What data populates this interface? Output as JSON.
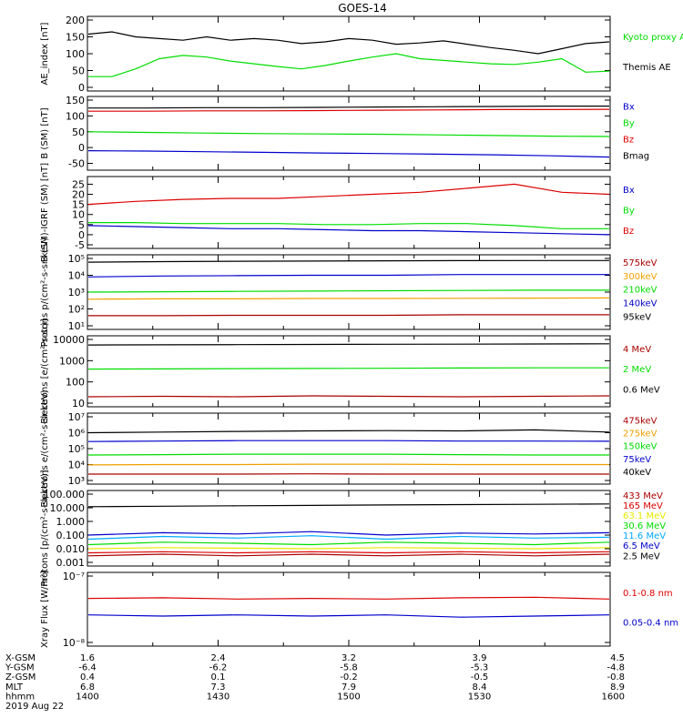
{
  "title": "GOES-14",
  "colors": {
    "black": "#000000",
    "green": "#00dd00",
    "red": "#dd0000",
    "blue": "#0000cc",
    "orange": "#f0a000",
    "yellow": "#e8e800",
    "cyan": "#00aaff",
    "purple": "#9900cc",
    "brown": "#aa0000"
  },
  "chart_data": [
    {
      "type": "line",
      "ylabel": "AE_index [nT]",
      "ylim": [
        0,
        200
      ],
      "log": false,
      "yticks": [
        0,
        50,
        100,
        150,
        200
      ],
      "yticklabels": [
        "0",
        "50",
        "100",
        "150",
        "200"
      ],
      "series": [
        {
          "name": "Kyoto proxy AE",
          "color": "#00dd00",
          "values": [
            32,
            32,
            55,
            85,
            95,
            90,
            78,
            70,
            62,
            55,
            65,
            78,
            90,
            100,
            85,
            80,
            75,
            70,
            68,
            75,
            85,
            45,
            48
          ]
        },
        {
          "name": "Themis AE",
          "color": "#000000",
          "values": [
            158,
            165,
            150,
            145,
            140,
            150,
            140,
            145,
            140,
            130,
            135,
            145,
            140,
            128,
            132,
            138,
            128,
            118,
            110,
            100,
            115,
            130,
            135
          ]
        }
      ]
    },
    {
      "type": "line",
      "ylabel": "B (SM) [nT]",
      "ylim": [
        -60,
        150
      ],
      "log": false,
      "yticks": [
        -50,
        0,
        50,
        100,
        150
      ],
      "yticklabels": [
        "-50",
        "0",
        "50",
        "100",
        "150"
      ],
      "series": [
        {
          "name": "Bx",
          "color": "#0000cc",
          "values": [
            -10,
            -11,
            -13,
            -15,
            -17,
            -19,
            -21,
            -23,
            -26,
            -30
          ]
        },
        {
          "name": "By",
          "color": "#00dd00",
          "values": [
            50,
            48,
            46,
            44,
            43,
            42,
            40,
            38,
            36,
            35
          ]
        },
        {
          "name": "Bz",
          "color": "#dd0000",
          "values": [
            115,
            115,
            116,
            116,
            117,
            118,
            119,
            120,
            120,
            121
          ]
        },
        {
          "name": "Bmag",
          "color": "#000000",
          "values": [
            125,
            125,
            126,
            126,
            127,
            128,
            129,
            130,
            131,
            131
          ]
        }
      ]
    },
    {
      "type": "line",
      "ylabel": "B (SM)-IGRF (SM) [nT]",
      "ylim": [
        -5,
        27
      ],
      "log": false,
      "yticks": [
        -5,
        0,
        5,
        10,
        15,
        20,
        25
      ],
      "yticklabels": [
        "-5",
        "0",
        "5",
        "10",
        "15",
        "20",
        "25"
      ],
      "series": [
        {
          "name": "Bx",
          "color": "#0000cc",
          "values": [
            4.5,
            4,
            3.5,
            3,
            3,
            2.5,
            2,
            2,
            1.5,
            1,
            0.5,
            0
          ]
        },
        {
          "name": "By",
          "color": "#00dd00",
          "values": [
            6,
            6,
            5.5,
            5.5,
            5.5,
            5,
            5,
            5.5,
            5.5,
            4.5,
            3,
            3
          ]
        },
        {
          "name": "Bz",
          "color": "#dd0000",
          "values": [
            15,
            16.5,
            17.5,
            18,
            18,
            19,
            20,
            21,
            23,
            25,
            21,
            20
          ]
        }
      ]
    },
    {
      "type": "line",
      "ylabel": "Protons p/(cm²-s-sr-keV)",
      "ylim": [
        10,
        100000
      ],
      "log": true,
      "yticks": [
        10,
        100,
        1000,
        10000,
        100000
      ],
      "yticklabels": [
        "10¹",
        "10²",
        "10³",
        "10⁴",
        "10⁵"
      ],
      "series": [
        {
          "name": "575keV",
          "color": "#aa0000",
          "values": [
            40,
            40,
            42,
            42,
            42,
            45,
            45,
            45
          ]
        },
        {
          "name": "300keV",
          "color": "#f0a000",
          "values": [
            380,
            400,
            400,
            420,
            420,
            430,
            440,
            450
          ]
        },
        {
          "name": "210keV",
          "color": "#00dd00",
          "values": [
            1000,
            1050,
            1100,
            1150,
            1200,
            1250,
            1300,
            1300
          ]
        },
        {
          "name": "140keV",
          "color": "#0000cc",
          "values": [
            8000,
            9000,
            9500,
            10000,
            10000,
            11000,
            11000,
            11000
          ]
        },
        {
          "name": "95keV",
          "color": "#000000",
          "values": [
            60000,
            65000,
            68000,
            70000,
            72000,
            74000,
            75000,
            75000
          ]
        }
      ]
    },
    {
      "type": "line",
      "ylabel": "Electrons [e/(cm²-s-sr)]",
      "ylim": [
        10,
        10000
      ],
      "log": true,
      "yticks": [
        10,
        100,
        1000,
        10000
      ],
      "yticklabels": [
        "10",
        "100",
        "1000",
        "10000"
      ],
      "series": [
        {
          "name": "4 MeV",
          "color": "#aa0000",
          "values": [
            20,
            21,
            20,
            22,
            21,
            20,
            21,
            22
          ]
        },
        {
          "name": "2 MeV",
          "color": "#00dd00",
          "values": [
            400,
            410,
            420,
            430,
            440,
            450,
            460,
            460
          ]
        },
        {
          "name": "0.6 MeV",
          "color": "#000000",
          "values": [
            5500,
            5600,
            5700,
            5800,
            5900,
            6000,
            6100,
            6200
          ]
        }
      ]
    },
    {
      "type": "line",
      "ylabel": "Electrons e/(cm²-s-sr-keV)",
      "ylim": [
        1000,
        10000000
      ],
      "log": true,
      "yticks": [
        1000,
        10000,
        100000,
        1000000,
        10000000
      ],
      "yticklabels": [
        "10³",
        "10⁴",
        "10⁵",
        "10⁶",
        "10⁷"
      ],
      "series": [
        {
          "name": "475keV",
          "color": "#aa0000",
          "values": [
            2500,
            2500,
            2500,
            2600,
            2500,
            2500,
            2500,
            2500
          ]
        },
        {
          "name": "275keV",
          "color": "#f0a000",
          "values": [
            9500,
            10000,
            10000,
            10500,
            10500,
            10000,
            10000,
            10000
          ]
        },
        {
          "name": "150keV",
          "color": "#00dd00",
          "values": [
            40000,
            42000,
            45000,
            45000,
            45000,
            42000,
            40000,
            40000
          ]
        },
        {
          "name": "75keV",
          "color": "#0000cc",
          "values": [
            280000,
            300000,
            320000,
            320000,
            320000,
            300000,
            300000,
            290000
          ]
        },
        {
          "name": "40keV",
          "color": "#000000",
          "values": [
            1000000,
            1100000,
            1200000,
            1300000,
            1350000,
            1300000,
            1500000,
            1100000
          ]
        }
      ]
    },
    {
      "type": "line",
      "ylabel": "Protons [p/(cm²-s-sr-keV)]",
      "ylim": [
        0.001,
        100
      ],
      "log": true,
      "yticks": [
        0.001,
        0.01,
        0.1,
        1,
        10,
        100
      ],
      "yticklabels": [
        "0.001",
        "0.010",
        "0.100",
        "1.000",
        "10.000",
        "100.000"
      ],
      "series": [
        {
          "name": "433 MeV",
          "color": "#aa0000",
          "values": [
            0.003,
            0.004,
            0.003,
            0.004,
            0.003,
            0.004,
            0.003,
            0.004
          ]
        },
        {
          "name": "165 MeV",
          "color": "#dd0000",
          "values": [
            0.005,
            0.006,
            0.005,
            0.006,
            0.005,
            0.006,
            0.005,
            0.006
          ]
        },
        {
          "name": "63.1 MeV",
          "color": "#e8e800",
          "values": [
            0.01,
            0.012,
            0.011,
            0.01,
            0.012,
            0.011,
            0.01,
            0.012
          ]
        },
        {
          "name": "30.6 MeV",
          "color": "#00dd00",
          "values": [
            0.02,
            0.03,
            0.025,
            0.02,
            0.03,
            0.025,
            0.02,
            0.03
          ]
        },
        {
          "name": "11.6 MeV",
          "color": "#00aaff",
          "values": [
            0.05,
            0.08,
            0.06,
            0.09,
            0.05,
            0.08,
            0.06,
            0.07
          ]
        },
        {
          "name": "6.5 MeV",
          "color": "#0000cc",
          "values": [
            0.1,
            0.15,
            0.12,
            0.18,
            0.1,
            0.14,
            0.12,
            0.15
          ]
        },
        {
          "name": "2.5 MeV",
          "color": "#000000",
          "values": [
            12,
            13,
            14,
            15,
            16,
            17,
            18,
            19
          ]
        }
      ]
    },
    {
      "type": "line",
      "ylabel": "Xray Flux [W/m²]",
      "ylim": [
        1e-08,
        1e-07
      ],
      "log": true,
      "yticks": [
        1e-08,
        1e-07
      ],
      "yticklabels": [
        "10⁻⁸",
        "10⁻⁷"
      ],
      "series": [
        {
          "name": "0.1-0.8 nm",
          "color": "#dd0000",
          "values": [
            4.6e-08,
            4.7e-08,
            4.5e-08,
            4.6e-08,
            4.5e-08,
            4.7e-08,
            4.8e-08,
            4.5e-08
          ]
        },
        {
          "name": "0.05-0.4 nm",
          "color": "#0000cc",
          "values": [
            2.6e-08,
            2.5e-08,
            2.6e-08,
            2.5e-08,
            2.6e-08,
            2.4e-08,
            2.5e-08,
            2.6e-08
          ]
        }
      ]
    }
  ],
  "xaxis": {
    "row_labels": [
      "X-GSM",
      "Y-GSM",
      "Z-GSM",
      "MLT",
      "hhmm",
      "2019 Aug 22"
    ],
    "columns": [
      [
        "1.6",
        "-6.4",
        "0.4",
        "6.8",
        "1400"
      ],
      [
        "2.4",
        "-6.2",
        "0.1",
        "7.3",
        "1430"
      ],
      [
        "3.2",
        "-5.8",
        "-0.2",
        "7.9",
        "1500"
      ],
      [
        "3.9",
        "-5.3",
        "-0.5",
        "8.4",
        "1530"
      ],
      [
        "4.5",
        "-4.8",
        "-0.8",
        "8.9",
        "1600"
      ]
    ]
  }
}
